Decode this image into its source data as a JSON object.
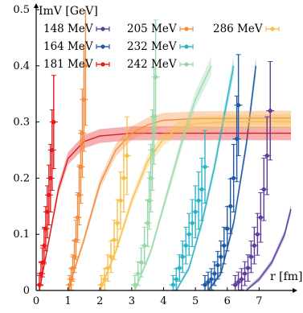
{
  "chart_data": {
    "type": "scatter",
    "title": "",
    "ylabel": "ImV [GeV]",
    "xlabel": "r [fm]",
    "xlim": [
      0,
      8
    ],
    "ylim": [
      0,
      0.5
    ],
    "xticks": [
      "0",
      "1",
      "2",
      "3",
      "4",
      "5",
      "6",
      "7"
    ],
    "yticks": [
      "0",
      "0.1",
      "0.2",
      "0.3",
      "0.4",
      "0.5"
    ],
    "grid": false,
    "legend_placement": "top",
    "series": [
      {
        "name": "148 MeV",
        "color": "#5e3c99",
        "points": [
          [
            6.25,
            0.01
          ],
          [
            6.35,
            0.015
          ],
          [
            6.45,
            0.02
          ],
          [
            6.55,
            0.03
          ],
          [
            6.65,
            0.04
          ],
          [
            6.75,
            0.06
          ],
          [
            6.85,
            0.08
          ],
          [
            6.95,
            0.1
          ],
          [
            7.05,
            0.13
          ],
          [
            7.15,
            0.18
          ],
          [
            7.25,
            0.24
          ],
          [
            7.35,
            0.32
          ]
        ],
        "curve": [
          [
            6.6,
            0.0
          ],
          [
            7.0,
            0.02
          ],
          [
            7.4,
            0.05
          ],
          [
            7.8,
            0.1
          ],
          [
            8.0,
            0.145
          ]
        ]
      },
      {
        "name": "164 MeV",
        "color": "#1f5aa6",
        "points": [
          [
            5.3,
            0.01
          ],
          [
            5.4,
            0.015
          ],
          [
            5.5,
            0.02
          ],
          [
            5.6,
            0.03
          ],
          [
            5.7,
            0.045
          ],
          [
            5.8,
            0.06
          ],
          [
            5.9,
            0.08
          ],
          [
            6.0,
            0.11
          ],
          [
            6.1,
            0.15
          ],
          [
            6.2,
            0.2
          ],
          [
            6.3,
            0.27
          ],
          [
            6.35,
            0.33
          ]
        ],
        "curve": [
          [
            5.4,
            0.0
          ],
          [
            5.8,
            0.03
          ],
          [
            6.2,
            0.12
          ],
          [
            6.6,
            0.26
          ],
          [
            6.9,
            0.4
          ]
        ]
      },
      {
        "name": "181 MeV",
        "color": "#e31a1c",
        "points": [
          [
            0.1,
            0.01
          ],
          [
            0.15,
            0.03
          ],
          [
            0.2,
            0.05
          ],
          [
            0.25,
            0.08
          ],
          [
            0.3,
            0.11
          ],
          [
            0.35,
            0.14
          ],
          [
            0.4,
            0.17
          ],
          [
            0.45,
            0.2
          ],
          [
            0.5,
            0.25
          ],
          [
            0.55,
            0.3
          ]
        ],
        "curve": [
          [
            0.1,
            0.0
          ],
          [
            0.4,
            0.09
          ],
          [
            0.7,
            0.18
          ],
          [
            1.0,
            0.235
          ],
          [
            1.5,
            0.265
          ],
          [
            2.0,
            0.275
          ],
          [
            3.0,
            0.28
          ],
          [
            8.0,
            0.28
          ]
        ]
      },
      {
        "name": "205 MeV",
        "color": "#f58b3b",
        "points": [
          [
            1.05,
            0.01
          ],
          [
            1.1,
            0.02
          ],
          [
            1.15,
            0.04
          ],
          [
            1.2,
            0.06
          ],
          [
            1.25,
            0.09
          ],
          [
            1.3,
            0.13
          ],
          [
            1.35,
            0.17
          ],
          [
            1.4,
            0.22
          ],
          [
            1.45,
            0.28
          ],
          [
            1.5,
            0.34
          ],
          [
            1.55,
            0.4
          ]
        ],
        "curve": [
          [
            1.0,
            0.0
          ],
          [
            1.5,
            0.09
          ],
          [
            2.0,
            0.19
          ],
          [
            2.5,
            0.25
          ],
          [
            3.0,
            0.28
          ],
          [
            3.5,
            0.295
          ],
          [
            4.0,
            0.303
          ],
          [
            5.0,
            0.306
          ],
          [
            8.0,
            0.307
          ]
        ]
      },
      {
        "name": "232 MeV",
        "color": "#2bb5c4",
        "points": [
          [
            4.3,
            0.01
          ],
          [
            4.4,
            0.02
          ],
          [
            4.5,
            0.04
          ],
          [
            4.6,
            0.06
          ],
          [
            4.7,
            0.08
          ],
          [
            4.8,
            0.1
          ],
          [
            4.9,
            0.12
          ],
          [
            5.0,
            0.14
          ],
          [
            5.1,
            0.16
          ],
          [
            5.2,
            0.18
          ],
          [
            5.3,
            0.22
          ]
        ],
        "curve": [
          [
            4.4,
            0.0
          ],
          [
            4.8,
            0.04
          ],
          [
            5.2,
            0.12
          ],
          [
            5.6,
            0.22
          ],
          [
            5.9,
            0.31
          ],
          [
            6.2,
            0.4
          ]
        ]
      },
      {
        "name": "242 MeV",
        "color": "#98d8a8",
        "points": [
          [
            3.1,
            0.01
          ],
          [
            3.2,
            0.03
          ],
          [
            3.3,
            0.05
          ],
          [
            3.4,
            0.08
          ],
          [
            3.5,
            0.12
          ],
          [
            3.55,
            0.16
          ],
          [
            3.6,
            0.2
          ],
          [
            3.65,
            0.25
          ],
          [
            3.7,
            0.31
          ],
          [
            3.75,
            0.38
          ]
        ],
        "curve": [
          [
            3.1,
            0.0
          ],
          [
            3.6,
            0.07
          ],
          [
            4.1,
            0.17
          ],
          [
            4.6,
            0.27
          ],
          [
            5.0,
            0.34
          ],
          [
            5.5,
            0.4
          ]
        ]
      },
      {
        "name": "286 MeV",
        "color": "#f7c04a",
        "points": [
          [
            2.05,
            0.01
          ],
          [
            2.15,
            0.02
          ],
          [
            2.25,
            0.04
          ],
          [
            2.35,
            0.06
          ],
          [
            2.45,
            0.09
          ],
          [
            2.55,
            0.12
          ],
          [
            2.65,
            0.16
          ],
          [
            2.75,
            0.2
          ],
          [
            2.85,
            0.24
          ]
        ],
        "curve": [
          [
            2.0,
            0.0
          ],
          [
            2.5,
            0.07
          ],
          [
            3.0,
            0.16
          ],
          [
            3.5,
            0.23
          ],
          [
            4.0,
            0.27
          ],
          [
            4.5,
            0.29
          ],
          [
            5.0,
            0.297
          ],
          [
            6.0,
            0.3
          ],
          [
            8.0,
            0.301
          ]
        ]
      }
    ]
  }
}
